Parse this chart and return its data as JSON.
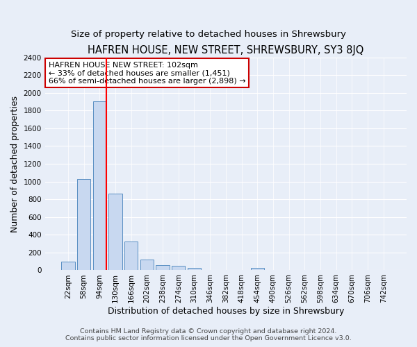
{
  "title": "HAFREN HOUSE, NEW STREET, SHREWSBURY, SY3 8JQ",
  "subtitle": "Size of property relative to detached houses in Shrewsbury",
  "xlabel": "Distribution of detached houses by size in Shrewsbury",
  "ylabel": "Number of detached properties",
  "bin_labels": [
    "22sqm",
    "58sqm",
    "94sqm",
    "130sqm",
    "166sqm",
    "202sqm",
    "238sqm",
    "274sqm",
    "310sqm",
    "346sqm",
    "382sqm",
    "418sqm",
    "454sqm",
    "490sqm",
    "526sqm",
    "562sqm",
    "598sqm",
    "634sqm",
    "670sqm",
    "706sqm",
    "742sqm"
  ],
  "bar_heights": [
    100,
    1030,
    1900,
    860,
    325,
    120,
    55,
    50,
    30,
    0,
    0,
    0,
    30,
    0,
    0,
    0,
    0,
    0,
    0,
    0,
    0
  ],
  "bar_color": "#c8d8f0",
  "bar_edge_color": "#5a8fc3",
  "red_line_x": 2.425,
  "annotation_text": "HAFREN HOUSE NEW STREET: 102sqm\n← 33% of detached houses are smaller (1,451)\n66% of semi-detached houses are larger (2,898) →",
  "annotation_box_color": "#ffffff",
  "annotation_box_edge_color": "#cc0000",
  "ylim": [
    0,
    2400
  ],
  "yticks": [
    0,
    200,
    400,
    600,
    800,
    1000,
    1200,
    1400,
    1600,
    1800,
    2000,
    2200,
    2400
  ],
  "bg_color": "#e8eef8",
  "grid_color": "#ffffff",
  "footer_line1": "Contains HM Land Registry data © Crown copyright and database right 2024.",
  "footer_line2": "Contains public sector information licensed under the Open Government Licence v3.0.",
  "title_fontsize": 10.5,
  "subtitle_fontsize": 9.5,
  "label_fontsize": 9,
  "tick_fontsize": 7.5,
  "footer_fontsize": 6.8
}
